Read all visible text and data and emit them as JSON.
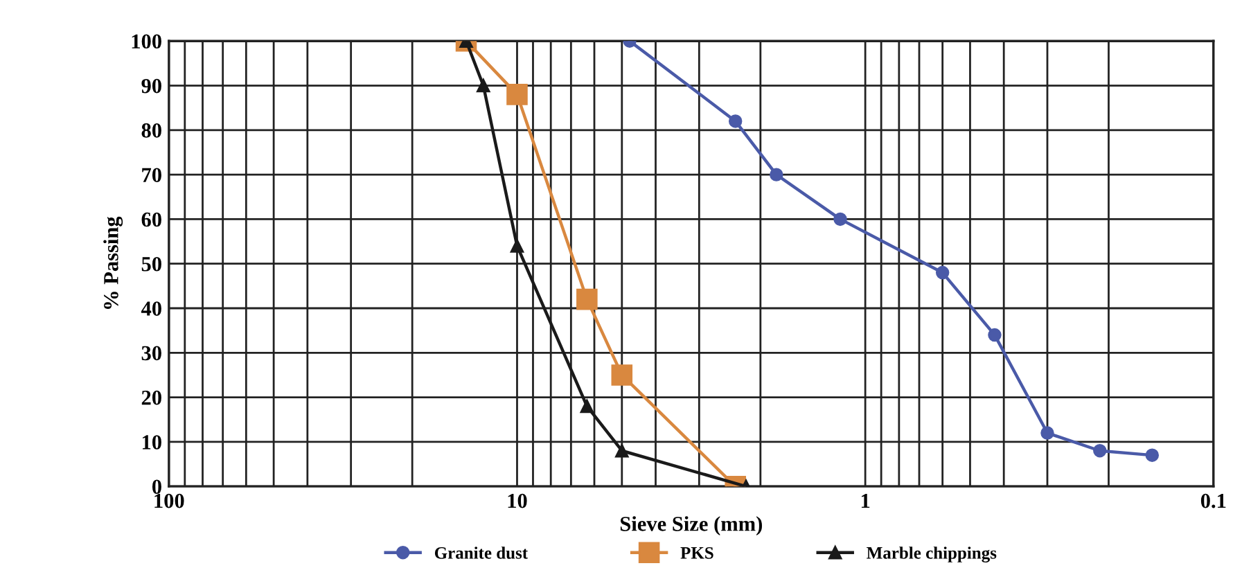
{
  "chart_data": {
    "type": "line",
    "xlabel": "Sieve Size (mm)",
    "ylabel": "% Passing",
    "log": "x",
    "xlim": [
      100,
      0.1
    ],
    "xticks": [
      100,
      10,
      1,
      0.1
    ],
    "ylim": [
      0,
      100
    ],
    "yticks": [
      0,
      10,
      20,
      30,
      40,
      50,
      60,
      70,
      80,
      90,
      100
    ],
    "grid": true,
    "legend": "bottom",
    "line_style": "solid",
    "series": [
      {
        "name": "Granite dust",
        "color": "#4a5aa8",
        "marker": "circle",
        "x": [
          4.75,
          2.36,
          1.8,
          1.18,
          0.6,
          0.425,
          0.3,
          0.212,
          0.15
        ],
        "values": [
          100,
          82,
          70,
          60,
          48,
          34,
          12,
          8,
          7
        ]
      },
      {
        "name": "PKS",
        "color": "#d9883f",
        "marker": "square",
        "x": [
          14,
          10,
          6.3,
          5,
          2.36
        ],
        "values": [
          100,
          88,
          42,
          25,
          0
        ]
      },
      {
        "name": "Marble chippings",
        "color": "#1a1a1a",
        "marker": "triangle",
        "x": [
          14,
          12.5,
          10,
          6.3,
          5,
          2.2
        ],
        "values": [
          100,
          90,
          54,
          18,
          8,
          0
        ]
      }
    ]
  }
}
